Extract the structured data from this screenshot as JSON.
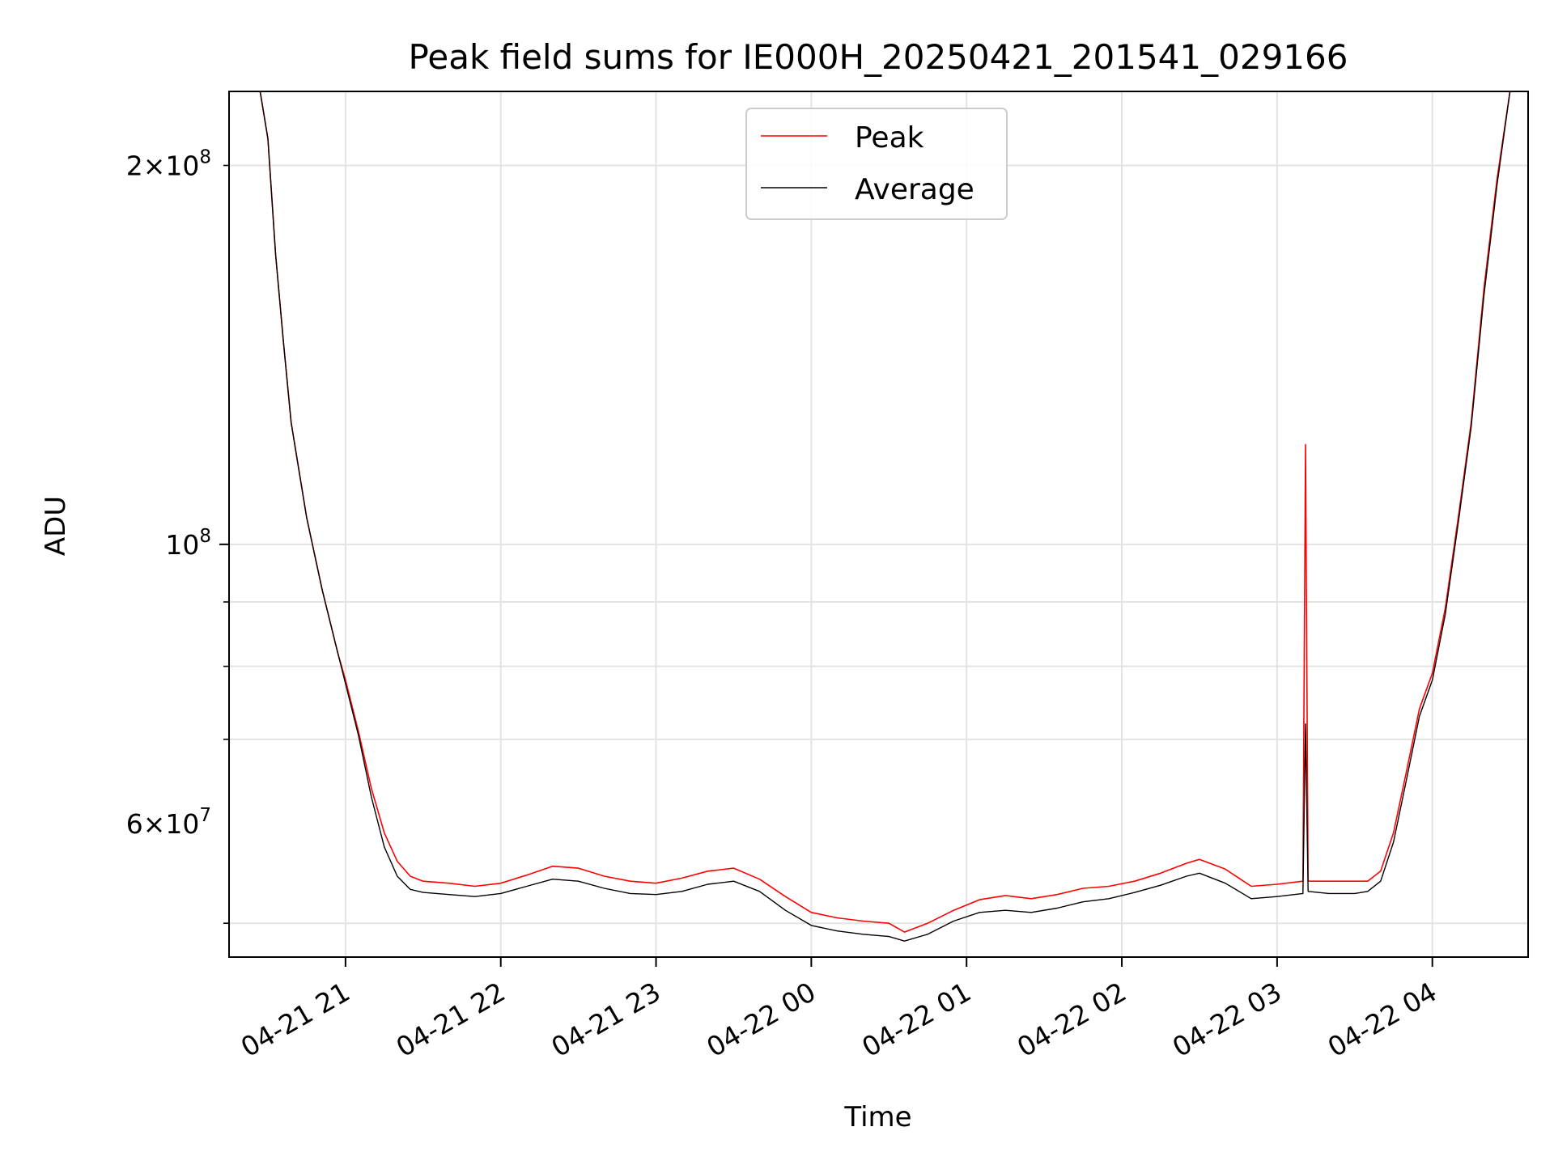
{
  "chart_data": {
    "type": "line",
    "title": "Peak field sums for IE000H_20250421_201541_029166",
    "xlabel": "Time",
    "ylabel": "ADU",
    "yscale": "log",
    "grid": true,
    "legend_position": "top-center",
    "x_axis": {
      "type": "datetime",
      "range": [
        "2025-04-21 20:15",
        "2025-04-22 04:37"
      ],
      "tick_values": [
        "2025-04-21 21:00",
        "2025-04-21 22:00",
        "2025-04-21 23:00",
        "2025-04-22 00:00",
        "2025-04-22 01:00",
        "2025-04-22 02:00",
        "2025-04-22 03:00",
        "2025-04-22 04:00"
      ],
      "tick_labels": [
        "04-21 21",
        "04-21 22",
        "04-21 23",
        "04-22 00",
        "04-22 01",
        "04-22 02",
        "04-22 03",
        "04-22 04"
      ]
    },
    "y_axis": {
      "range": [
        47000000,
        229000000
      ],
      "major_ticks": [
        {
          "value": 100000000,
          "base": "10",
          "exp": "8"
        }
      ],
      "minor_ticks_labeled": [
        {
          "value": 200000000,
          "mant": "2",
          "exp": "8"
        },
        {
          "value": 60000000,
          "mant": "6",
          "exp": "7"
        }
      ],
      "minor_ticks": [
        50000000,
        70000000,
        80000000,
        90000000,
        200000000
      ]
    },
    "series": [
      {
        "name": "Peak",
        "color": "#ff0000",
        "x": [
          "2025-04-21 20:15",
          "2025-04-21 20:27",
          "2025-04-21 20:30",
          "2025-04-21 20:33",
          "2025-04-21 20:36",
          "2025-04-21 20:39",
          "2025-04-21 20:45",
          "2025-04-21 20:51",
          "2025-04-21 20:57",
          "2025-04-21 21:00",
          "2025-04-21 21:05",
          "2025-04-21 21:10",
          "2025-04-21 21:15",
          "2025-04-21 21:20",
          "2025-04-21 21:25",
          "2025-04-21 21:30",
          "2025-04-21 21:40",
          "2025-04-21 21:50",
          "2025-04-21 22:00",
          "2025-04-21 22:10",
          "2025-04-21 22:20",
          "2025-04-21 22:30",
          "2025-04-21 22:40",
          "2025-04-21 22:50",
          "2025-04-21 23:00",
          "2025-04-21 23:10",
          "2025-04-21 23:20",
          "2025-04-21 23:30",
          "2025-04-21 23:40",
          "2025-04-21 23:50",
          "2025-04-22 00:00",
          "2025-04-22 00:10",
          "2025-04-22 00:20",
          "2025-04-22 00:30",
          "2025-04-22 00:36",
          "2025-04-22 00:45",
          "2025-04-22 00:55",
          "2025-04-22 01:05",
          "2025-04-22 01:15",
          "2025-04-22 01:25",
          "2025-04-22 01:35",
          "2025-04-22 01:45",
          "2025-04-22 01:55",
          "2025-04-22 02:05",
          "2025-04-22 02:15",
          "2025-04-22 02:25",
          "2025-04-22 02:30",
          "2025-04-22 02:40",
          "2025-04-22 02:50",
          "2025-04-22 03:00",
          "2025-04-22 03:10",
          "2025-04-22 03:11",
          "2025-04-22 03:12",
          "2025-04-22 03:20",
          "2025-04-22 03:30",
          "2025-04-22 03:35",
          "2025-04-22 03:40",
          "2025-04-22 03:45",
          "2025-04-22 03:50",
          "2025-04-22 03:55",
          "2025-04-22 04:00",
          "2025-04-22 04:05",
          "2025-04-22 04:10",
          "2025-04-22 04:15",
          "2025-04-22 04:20",
          "2025-04-22 04:25",
          "2025-04-22 04:30",
          "2025-04-22 04:37"
        ],
        "y": [
          229000000,
          229000000,
          210000000,
          170000000,
          145000000,
          125000000,
          105000000,
          92000000,
          82000000,
          78000000,
          71000000,
          64000000,
          59000000,
          56000000,
          54500000,
          54000000,
          53800000,
          53500000,
          53800000,
          54600000,
          55500000,
          55300000,
          54500000,
          54000000,
          53800000,
          54300000,
          55000000,
          55300000,
          54200000,
          52500000,
          51000000,
          50500000,
          50200000,
          50000000,
          49200000,
          50000000,
          51200000,
          52200000,
          52600000,
          52300000,
          52700000,
          53300000,
          53500000,
          54000000,
          54800000,
          55800000,
          56200000,
          55200000,
          53500000,
          53700000,
          54000000,
          120000000,
          54000000,
          54000000,
          54000000,
          54000000,
          55000000,
          59000000,
          66000000,
          74000000,
          79000000,
          89000000,
          105000000,
          125000000,
          160000000,
          195000000,
          229000000,
          229000000
        ]
      },
      {
        "name": "Average",
        "color": "#000000",
        "x": [
          "2025-04-21 20:15",
          "2025-04-21 20:27",
          "2025-04-21 20:30",
          "2025-04-21 20:33",
          "2025-04-21 20:36",
          "2025-04-21 20:39",
          "2025-04-21 20:45",
          "2025-04-21 20:51",
          "2025-04-21 20:57",
          "2025-04-21 21:00",
          "2025-04-21 21:05",
          "2025-04-21 21:10",
          "2025-04-21 21:15",
          "2025-04-21 21:20",
          "2025-04-21 21:25",
          "2025-04-21 21:30",
          "2025-04-21 21:40",
          "2025-04-21 21:50",
          "2025-04-21 22:00",
          "2025-04-21 22:10",
          "2025-04-21 22:20",
          "2025-04-21 22:30",
          "2025-04-21 22:40",
          "2025-04-21 22:50",
          "2025-04-21 23:00",
          "2025-04-21 23:10",
          "2025-04-21 23:20",
          "2025-04-21 23:30",
          "2025-04-21 23:40",
          "2025-04-21 23:50",
          "2025-04-22 00:00",
          "2025-04-22 00:10",
          "2025-04-22 00:20",
          "2025-04-22 00:30",
          "2025-04-22 00:36",
          "2025-04-22 00:45",
          "2025-04-22 00:55",
          "2025-04-22 01:05",
          "2025-04-22 01:15",
          "2025-04-22 01:25",
          "2025-04-22 01:35",
          "2025-04-22 01:45",
          "2025-04-22 01:55",
          "2025-04-22 02:05",
          "2025-04-22 02:15",
          "2025-04-22 02:25",
          "2025-04-22 02:30",
          "2025-04-22 02:40",
          "2025-04-22 02:50",
          "2025-04-22 03:00",
          "2025-04-22 03:10",
          "2025-04-22 03:11",
          "2025-04-22 03:12",
          "2025-04-22 03:20",
          "2025-04-22 03:30",
          "2025-04-22 03:35",
          "2025-04-22 03:40",
          "2025-04-22 03:45",
          "2025-04-22 03:50",
          "2025-04-22 03:55",
          "2025-04-22 04:00",
          "2025-04-22 04:05",
          "2025-04-22 04:10",
          "2025-04-22 04:15",
          "2025-04-22 04:20",
          "2025-04-22 04:25",
          "2025-04-22 04:30",
          "2025-04-22 04:37"
        ],
        "y": [
          229000000,
          229000000,
          210000000,
          170000000,
          145000000,
          125000000,
          105000000,
          92000000,
          82000000,
          77500000,
          70500000,
          63000000,
          57500000,
          54500000,
          53200000,
          52900000,
          52700000,
          52500000,
          52800000,
          53500000,
          54200000,
          54000000,
          53300000,
          52800000,
          52700000,
          53000000,
          53700000,
          54000000,
          53000000,
          51200000,
          49800000,
          49300000,
          49000000,
          48800000,
          48400000,
          49000000,
          50200000,
          51000000,
          51200000,
          51000000,
          51400000,
          52000000,
          52300000,
          52900000,
          53600000,
          54500000,
          54800000,
          53800000,
          52300000,
          52500000,
          52800000,
          72000000,
          53000000,
          52800000,
          52800000,
          53000000,
          54000000,
          58000000,
          65000000,
          73000000,
          78000000,
          88000000,
          104000000,
          124000000,
          158000000,
          193000000,
          229000000,
          229000000
        ]
      }
    ]
  }
}
